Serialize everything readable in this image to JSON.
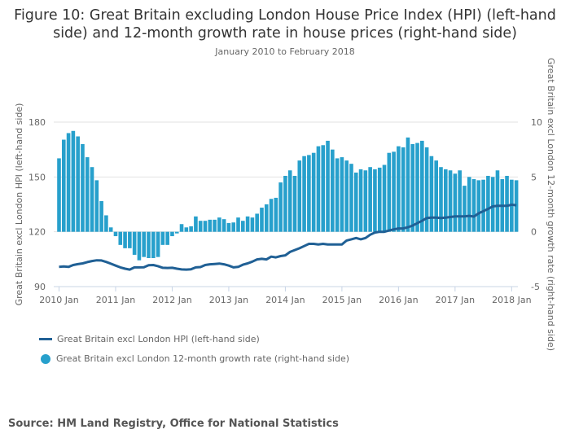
{
  "chart_data": {
    "type": "bar+line",
    "title": "Figure 10: Great Britain excluding London House Price Index (HPI) (left-hand side) and 12-month growth rate in house prices (right-hand side)",
    "subtitle": "January 2010 to February 2018",
    "ylabel_left": "Great Britain excl London HPI (left-hand side)",
    "ylabel_right": "Great Britain excl London 12-month growth rate (right-hand side)",
    "ylim_left": [
      90,
      180
    ],
    "ylim_right": [
      -5,
      10
    ],
    "yticks_left": [
      "90",
      "120",
      "150",
      "180"
    ],
    "yticks_right": [
      "-5",
      "0",
      "5",
      "10"
    ],
    "xticks": [
      "2010 Jan",
      "2011 Jan",
      "2012 Jan",
      "2013 Jan",
      "2014 Jan",
      "2015 Jan",
      "2016 Jan",
      "2017 Jan",
      "2018 Jan"
    ],
    "x_start": "2010-01",
    "x_end": "2018-02",
    "grid": true,
    "legend_position": "bottom-left",
    "series": [
      {
        "name": "Great Britain excl London HPI (left-hand side)",
        "type": "line",
        "axis": "left",
        "color": "#206095",
        "values": [
          100.8,
          101,
          100.8,
          101.8,
          102.3,
          102.7,
          103.4,
          104,
          104.4,
          104.3,
          103.5,
          102.5,
          101.5,
          100.5,
          99.8,
          99.3,
          100.5,
          100.5,
          100.6,
          101.7,
          101.8,
          101.2,
          100.3,
          100.2,
          100.3,
          99.8,
          99.4,
          99.3,
          99.5,
          100.5,
          100.7,
          101.8,
          102.2,
          102.4,
          102.6,
          102.2,
          101.5,
          100.5,
          100.8,
          102,
          102.7,
          103.7,
          104.9,
          105.2,
          104.9,
          106.4,
          106,
          106.7,
          107.1,
          109,
          110,
          111,
          112.2,
          113.4,
          113.4,
          113.1,
          113.4,
          113.1,
          113.1,
          113.1,
          113.1,
          115.2,
          115.9,
          116.6,
          115.9,
          116.6,
          118.4,
          119.6,
          120,
          120,
          120.7,
          121.3,
          121.8,
          121.8,
          122.5,
          123.4,
          124.7,
          126,
          127.5,
          127.8,
          127.8,
          127.5,
          127.8,
          128.1,
          128.4,
          128.4,
          128.4,
          128.7,
          128.3,
          130.1,
          131.3,
          132.5,
          133.9,
          134.2,
          134.2,
          134.2,
          134.8,
          134.5
        ]
      },
      {
        "name": "Great Britain excl London 12-month growth rate (right-hand side)",
        "type": "bar",
        "axis": "right",
        "color": "#27a0cc",
        "values": [
          6.7,
          8.4,
          9.0,
          9.2,
          8.7,
          8.0,
          6.8,
          5.9,
          4.7,
          2.8,
          1.5,
          0.4,
          -0.4,
          -1.2,
          -1.5,
          -1.5,
          -2.1,
          -2.6,
          -2.3,
          -2.4,
          -2.4,
          -2.3,
          -1.2,
          -1.2,
          -0.4,
          -0.15,
          0.7,
          0.4,
          0.5,
          1.4,
          1.0,
          1.0,
          1.1,
          1.1,
          1.3,
          1.15,
          0.8,
          0.85,
          1.3,
          1.0,
          1.4,
          1.3,
          1.65,
          2.2,
          2.5,
          3.0,
          3.1,
          4.5,
          5.1,
          5.6,
          5.1,
          6.5,
          6.9,
          7.0,
          7.2,
          7.8,
          7.9,
          8.3,
          7.5,
          6.7,
          6.8,
          6.5,
          6.2,
          5.4,
          5.7,
          5.6,
          5.9,
          5.7,
          5.85,
          6.1,
          7.2,
          7.3,
          7.8,
          7.7,
          8.6,
          8.0,
          8.1,
          8.3,
          7.7,
          6.9,
          6.5,
          5.9,
          5.7,
          5.6,
          5.3,
          5.6,
          4.2,
          5.0,
          4.8,
          4.7,
          4.75,
          5.1,
          5.0,
          5.6,
          4.8,
          5.1,
          4.75,
          4.7
        ]
      }
    ]
  },
  "source": "Source: HM Land Registry, Office for National Statistics"
}
